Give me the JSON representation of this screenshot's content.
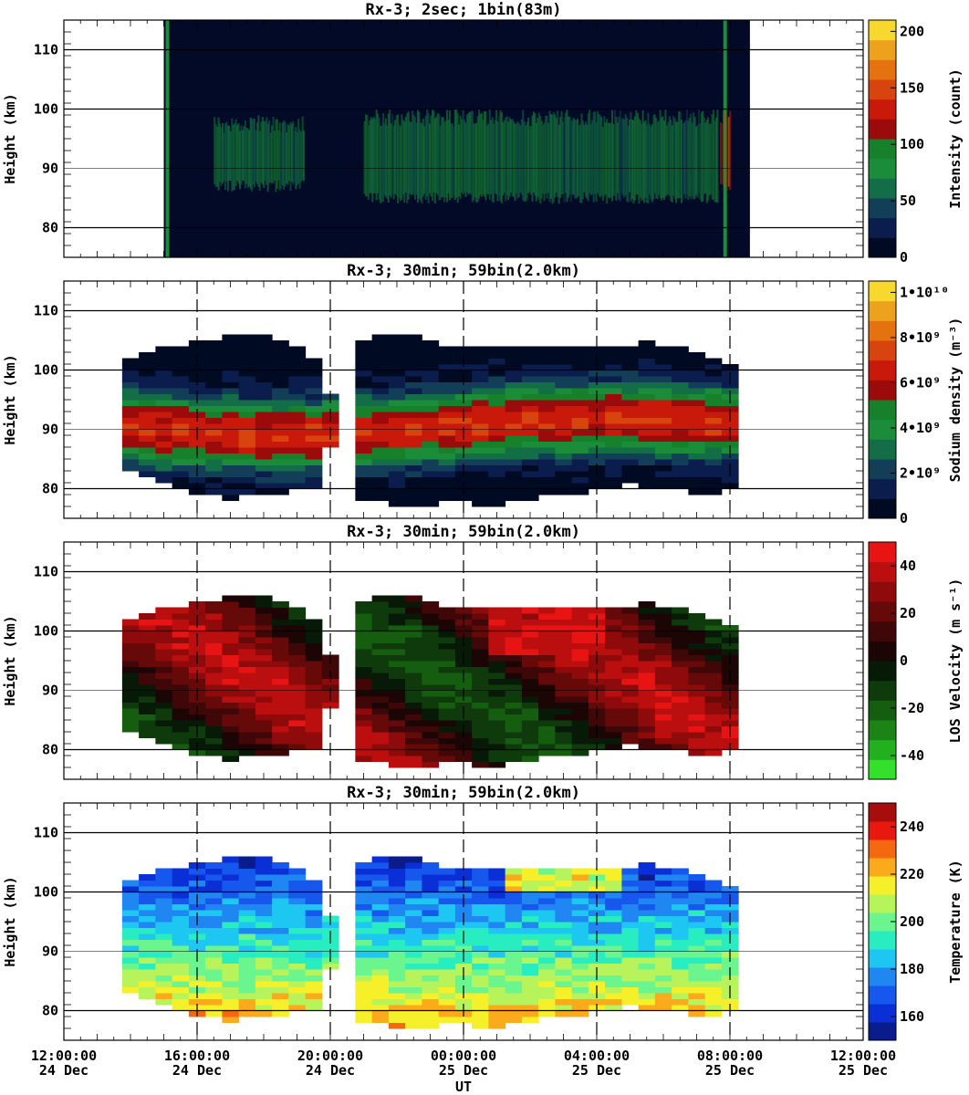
{
  "x_axis": {
    "label": "UT",
    "range_hours": [
      12,
      36
    ],
    "ticks": [
      {
        "h": 12,
        "time": "12:00:00",
        "date": "24 Dec"
      },
      {
        "h": 16,
        "time": "16:00:00",
        "date": "24 Dec"
      },
      {
        "h": 20,
        "time": "20:00:00",
        "date": "24 Dec"
      },
      {
        "h": 24,
        "time": "00:00:00",
        "date": "25 Dec"
      },
      {
        "h": 28,
        "time": "04:00:00",
        "date": "25 Dec"
      },
      {
        "h": 32,
        "time": "08:00:00",
        "date": "25 Dec"
      },
      {
        "h": 36,
        "time": "12:00:00",
        "date": "25 Dec"
      }
    ]
  },
  "chart_data": [
    {
      "type": "heatmap",
      "title": "Rx-3;  2sec; 1bin(83m)",
      "ylabel": "Height (km)",
      "ylim": [
        75,
        115
      ],
      "yticks": [
        "80",
        "90",
        "100",
        "110"
      ],
      "colorbar_label": "Intensity (count)",
      "colorbar_range": [
        0,
        210
      ],
      "colorbar_ticks": [
        {
          "v": 0,
          "label": "0"
        },
        {
          "v": 50,
          "label": "50"
        },
        {
          "v": 100,
          "label": "100"
        },
        {
          "v": 150,
          "label": "150"
        },
        {
          "v": 200,
          "label": "200"
        }
      ],
      "colors": [
        "#000a22",
        "#0b1d4d",
        "#123f57",
        "#136e48",
        "#1a8c3a",
        "#16802a",
        "#9b0b0b",
        "#c8190b",
        "#d8440d",
        "#e3720f",
        "#eda21d",
        "#f7d82c"
      ],
      "background": "#020a28",
      "data_hours": [
        15.0,
        32.6
      ],
      "layers": [
        {
          "start": 16.5,
          "end": 19.2,
          "bottom": 86,
          "top": 99,
          "peak": 90,
          "level": 85
        },
        {
          "start": 21.0,
          "end": 31.6,
          "bottom": 84,
          "top": 100,
          "peak": 92,
          "level": 85
        },
        {
          "start": 31.7,
          "end": 32.0,
          "bottom": 86,
          "top": 100,
          "peak": 93,
          "level": 140
        }
      ]
    },
    {
      "type": "heatmap",
      "title": "Rx-3; 30min; 59bin(2.0km)",
      "ylabel": "Height (km)",
      "ylim": [
        75,
        115
      ],
      "yticks": [
        "80",
        "90",
        "100",
        "110"
      ],
      "colorbar_label": "Sodium density (m⁻³)",
      "colorbar_range": [
        0,
        10500000000.0
      ],
      "colorbar_ticks": [
        {
          "v": 0,
          "label": "0"
        },
        {
          "v": 2000000000.0,
          "label": "2•10⁹"
        },
        {
          "v": 4000000000.0,
          "label": "4•10⁹"
        },
        {
          "v": 6000000000.0,
          "label": "6•10⁹"
        },
        {
          "v": 8000000000.0,
          "label": "8•10⁹"
        },
        {
          "v": 10000000000.0,
          "label": "1•10¹⁰"
        }
      ],
      "colors": [
        "#000a22",
        "#0b1d4d",
        "#123f57",
        "#136e48",
        "#1a8c3a",
        "#16802a",
        "#9b0b0b",
        "#c8190b",
        "#d8440d",
        "#e3720f",
        "#eda21d",
        "#f7d82c"
      ],
      "field": "density",
      "columns": [
        {
          "h": 14.0,
          "b": 83,
          "t": 102
        },
        {
          "h": 14.5,
          "b": 82,
          "t": 103
        },
        {
          "h": 15.0,
          "b": 81,
          "t": 104
        },
        {
          "h": 15.5,
          "b": 80,
          "t": 104
        },
        {
          "h": 16.0,
          "b": 79,
          "t": 105
        },
        {
          "h": 16.5,
          "b": 79,
          "t": 105
        },
        {
          "h": 17.0,
          "b": 78,
          "t": 106
        },
        {
          "h": 17.5,
          "b": 79,
          "t": 106
        },
        {
          "h": 18.0,
          "b": 79,
          "t": 106
        },
        {
          "h": 18.5,
          "b": 79,
          "t": 105
        },
        {
          "h": 19.0,
          "b": 80,
          "t": 104
        },
        {
          "h": 19.5,
          "b": 80,
          "t": 102
        },
        {
          "h": 20.0,
          "b": 87,
          "t": 96
        },
        {
          "h": 21.0,
          "b": 78,
          "t": 105
        },
        {
          "h": 21.5,
          "b": 78,
          "t": 106
        },
        {
          "h": 22.0,
          "b": 77,
          "t": 106
        },
        {
          "h": 22.5,
          "b": 77,
          "t": 106
        },
        {
          "h": 23.0,
          "b": 77,
          "t": 105
        },
        {
          "h": 23.5,
          "b": 78,
          "t": 104
        },
        {
          "h": 24.0,
          "b": 78,
          "t": 104
        },
        {
          "h": 24.5,
          "b": 77,
          "t": 104
        },
        {
          "h": 25.0,
          "b": 77,
          "t": 104
        },
        {
          "h": 25.5,
          "b": 78,
          "t": 104
        },
        {
          "h": 26.0,
          "b": 78,
          "t": 104
        },
        {
          "h": 26.5,
          "b": 79,
          "t": 104
        },
        {
          "h": 27.0,
          "b": 79,
          "t": 104
        },
        {
          "h": 27.5,
          "b": 79,
          "t": 104
        },
        {
          "h": 28.0,
          "b": 80,
          "t": 104
        },
        {
          "h": 28.5,
          "b": 80,
          "t": 104
        },
        {
          "h": 29.0,
          "b": 81,
          "t": 104
        },
        {
          "h": 29.5,
          "b": 80,
          "t": 105
        },
        {
          "h": 30.0,
          "b": 80,
          "t": 104
        },
        {
          "h": 30.5,
          "b": 80,
          "t": 104
        },
        {
          "h": 31.0,
          "b": 79,
          "t": 103
        },
        {
          "h": 31.5,
          "b": 79,
          "t": 102
        },
        {
          "h": 32.0,
          "b": 80,
          "t": 101
        }
      ]
    },
    {
      "type": "heatmap",
      "title": "Rx-3; 30min; 59bin(2.0km)",
      "ylabel": "Height (km)",
      "ylim": [
        75,
        115
      ],
      "yticks": [
        "80",
        "90",
        "100",
        "110"
      ],
      "colorbar_label": "LOS Velocity (m s⁻¹)",
      "colorbar_range": [
        -50,
        50
      ],
      "colorbar_ticks": [
        {
          "v": -40,
          "label": "-40"
        },
        {
          "v": -20,
          "label": "-20"
        },
        {
          "v": 0,
          "label": "0"
        },
        {
          "v": 20,
          "label": "20"
        },
        {
          "v": 40,
          "label": "40"
        }
      ],
      "colors": [
        "#33e02c",
        "#22b01f",
        "#1c8416",
        "#155e10",
        "#0e3a0c",
        "#061a07",
        "#1b0505",
        "#3f0707",
        "#660909",
        "#8f0b0b",
        "#bb0e0e",
        "#e81414"
      ],
      "field": "velocity"
    },
    {
      "type": "heatmap",
      "title": "Rx-3; 30min; 59bin(2.0km)",
      "ylabel": "Height (km)",
      "ylim": [
        75,
        115
      ],
      "yticks": [
        "80",
        "90",
        "100",
        "110"
      ],
      "colorbar_label": "Temperature (K)",
      "colorbar_range": [
        150,
        250
      ],
      "colorbar_ticks": [
        {
          "v": 160,
          "label": "160"
        },
        {
          "v": 180,
          "label": "180"
        },
        {
          "v": 200,
          "label": "200"
        },
        {
          "v": 220,
          "label": "220"
        },
        {
          "v": 240,
          "label": "240"
        }
      ],
      "colors": [
        "#0a1c8c",
        "#0b2fd6",
        "#1657ee",
        "#1f86f2",
        "#1ec7f2",
        "#27edc0",
        "#6bf58f",
        "#b7f35a",
        "#f5f02a",
        "#fbaa1b",
        "#f46812",
        "#e8180f",
        "#a80d0d"
      ],
      "field": "temperature"
    }
  ]
}
